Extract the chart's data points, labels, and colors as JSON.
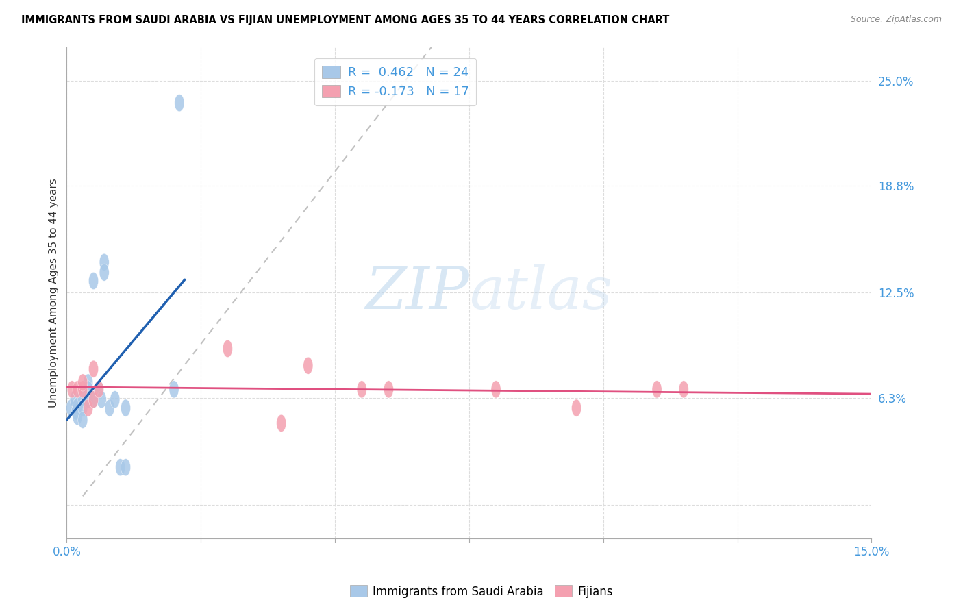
{
  "title": "IMMIGRANTS FROM SAUDI ARABIA VS FIJIAN UNEMPLOYMENT AMONG AGES 35 TO 44 YEARS CORRELATION CHART",
  "source": "Source: ZipAtlas.com",
  "ylabel": "Unemployment Among Ages 35 to 44 years",
  "xlim": [
    0.0,
    0.15
  ],
  "ylim": [
    -0.02,
    0.27
  ],
  "right_yticks": [
    0.0,
    0.063,
    0.125,
    0.188,
    0.25
  ],
  "right_yticklabels": [
    "",
    "6.3%",
    "12.5%",
    "18.8%",
    "25.0%"
  ],
  "xticks": [
    0.0,
    0.025,
    0.05,
    0.075,
    0.1,
    0.125,
    0.15
  ],
  "xticklabels": [
    "0.0%",
    "",
    "",
    "",
    "",
    "",
    "15.0%"
  ],
  "blue_color": "#a8c8e8",
  "pink_color": "#f4a0b0",
  "trendline_blue_color": "#2060b0",
  "trendline_pink_color": "#e05080",
  "diag_color": "#bbbbbb",
  "grid_color": "#dddddd",
  "tick_label_color": "#4499dd",
  "watermark_color": "#cde0f0",
  "blue_points_x": [
    0.0008,
    0.0015,
    0.0018,
    0.002,
    0.002,
    0.003,
    0.003,
    0.003,
    0.004,
    0.004,
    0.004,
    0.005,
    0.005,
    0.006,
    0.0065,
    0.007,
    0.007,
    0.008,
    0.009,
    0.01,
    0.011,
    0.011,
    0.02,
    0.021
  ],
  "blue_points_y": [
    0.057,
    0.062,
    0.055,
    0.058,
    0.052,
    0.062,
    0.057,
    0.05,
    0.072,
    0.068,
    0.062,
    0.132,
    0.062,
    0.068,
    0.062,
    0.143,
    0.137,
    0.057,
    0.062,
    0.022,
    0.057,
    0.022,
    0.068,
    0.237
  ],
  "pink_points_x": [
    0.001,
    0.002,
    0.003,
    0.003,
    0.004,
    0.005,
    0.005,
    0.006,
    0.03,
    0.04,
    0.045,
    0.055,
    0.06,
    0.08,
    0.095,
    0.11,
    0.115
  ],
  "pink_points_y": [
    0.068,
    0.068,
    0.068,
    0.072,
    0.057,
    0.062,
    0.08,
    0.068,
    0.092,
    0.048,
    0.082,
    0.068,
    0.068,
    0.068,
    0.057,
    0.068,
    0.068
  ],
  "watermark_zip": "ZIP",
  "watermark_atlas": "atlas",
  "legend_blue_label": "R =  0.462   N = 24",
  "legend_pink_label": "R = -0.173   N = 17",
  "bottom_legend_blue": "Immigrants from Saudi Arabia",
  "bottom_legend_pink": "Fijians"
}
